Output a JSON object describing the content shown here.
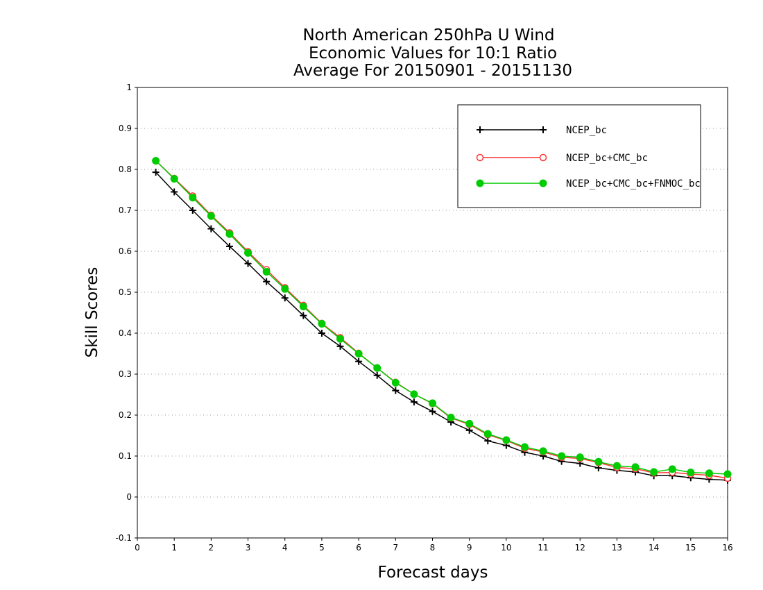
{
  "chart_data": {
    "type": "line",
    "title_lines": [
      "North American 250hPa U Wind",
      "Economic Values for 10:1 Ratio",
      "Average For 20150901 - 20151130"
    ],
    "xlabel": "Forecast days",
    "ylabel": "Skill Scores",
    "xlim": [
      0,
      16
    ],
    "ylim": [
      -0.1,
      1
    ],
    "x_ticks": [
      "0",
      "1",
      "2",
      "3",
      "4",
      "5",
      "6",
      "7",
      "8",
      "9",
      "10",
      "11",
      "12",
      "13",
      "14",
      "15",
      "16"
    ],
    "y_ticks": [
      "-0.1",
      "0",
      "0.1",
      "0.2",
      "0.3",
      "0.4",
      "0.5",
      "0.6",
      "0.7",
      "0.8",
      "0.9",
      "1"
    ],
    "grid": "horizontal dotted",
    "legend_position": "top-right",
    "x": [
      0.5,
      1,
      1.5,
      2,
      2.5,
      3,
      3.5,
      4,
      4.5,
      5,
      5.5,
      6,
      6.5,
      7,
      7.5,
      8,
      8.5,
      9,
      9.5,
      10,
      10.5,
      11,
      11.5,
      12,
      12.5,
      13,
      13.5,
      14,
      14.5,
      15,
      15.5,
      16
    ],
    "series": [
      {
        "name": "NCEP_bc",
        "color": "#000000",
        "marker": "plus",
        "values": [
          0.793,
          0.745,
          0.7,
          0.655,
          0.612,
          0.57,
          0.526,
          0.486,
          0.443,
          0.4,
          0.368,
          0.331,
          0.297,
          0.26,
          0.232,
          0.209,
          0.183,
          0.163,
          0.137,
          0.126,
          0.109,
          0.1,
          0.087,
          0.082,
          0.071,
          0.065,
          0.061,
          0.052,
          0.052,
          0.047,
          0.043,
          0.041
        ]
      },
      {
        "name": "NCEP_bc+CMC_bc",
        "color": "#ff3333",
        "marker": "open-circle",
        "values": [
          0.821,
          0.778,
          0.735,
          0.688,
          0.645,
          0.599,
          0.555,
          0.511,
          0.468,
          0.424,
          0.389,
          0.351,
          0.315,
          0.28,
          0.251,
          0.228,
          0.193,
          0.177,
          0.152,
          0.138,
          0.119,
          0.11,
          0.097,
          0.094,
          0.084,
          0.072,
          0.069,
          0.059,
          0.06,
          0.056,
          0.053,
          0.046
        ]
      },
      {
        "name": "NCEP_bc+CMC_bc+FNMOC_bc",
        "color": "#00cc00",
        "marker": "filled-circle",
        "values": [
          0.821,
          0.777,
          0.731,
          0.686,
          0.642,
          0.596,
          0.55,
          0.508,
          0.465,
          0.423,
          0.386,
          0.35,
          0.315,
          0.279,
          0.251,
          0.229,
          0.194,
          0.179,
          0.154,
          0.139,
          0.122,
          0.112,
          0.1,
          0.097,
          0.086,
          0.076,
          0.073,
          0.061,
          0.068,
          0.06,
          0.058,
          0.056
        ]
      }
    ]
  }
}
